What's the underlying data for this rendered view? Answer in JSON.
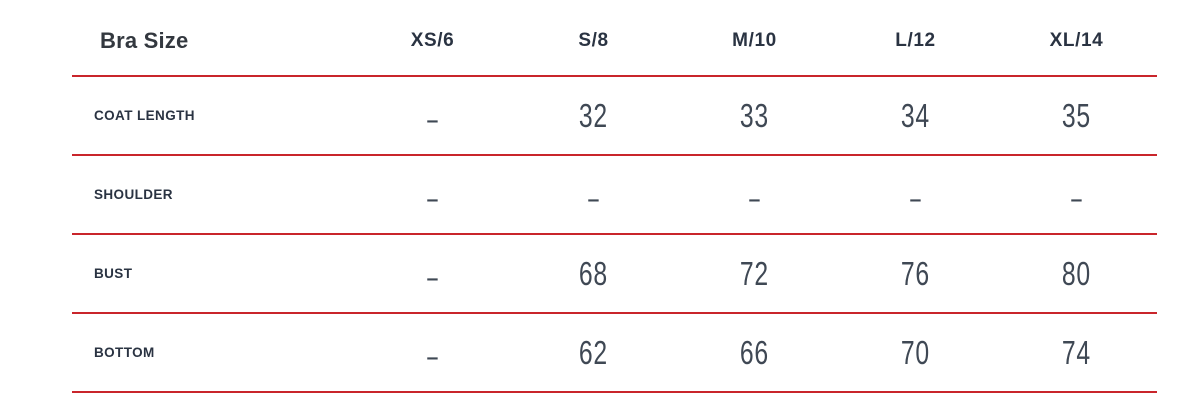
{
  "chart_data": {
    "type": "table",
    "title": "Bra Size",
    "columns": [
      "Bra Size",
      "XS/6",
      "S/8",
      "M/10",
      "L/12",
      "XL/14"
    ],
    "rows": [
      [
        "COAT LENGTH",
        "–",
        "32",
        "33",
        "34",
        "35"
      ],
      [
        "SHOULDER",
        "–",
        "–",
        "–",
        "–",
        "–"
      ],
      [
        "BUST",
        "–",
        "68",
        "72",
        "76",
        "80"
      ],
      [
        "BOTTOM",
        "–",
        "62",
        "66",
        "70",
        "74"
      ]
    ],
    "layout": {
      "legend": "none",
      "grid": "horizontal-dividers-only",
      "divider_color": "#c9252b",
      "value_columns_align": "center"
    }
  },
  "theme": {
    "accent": "#c9252b",
    "header_text_color": "#33383f",
    "label_text_color": "#2a3342",
    "value_text_color": "#3f4854",
    "background": "#ffffff"
  }
}
